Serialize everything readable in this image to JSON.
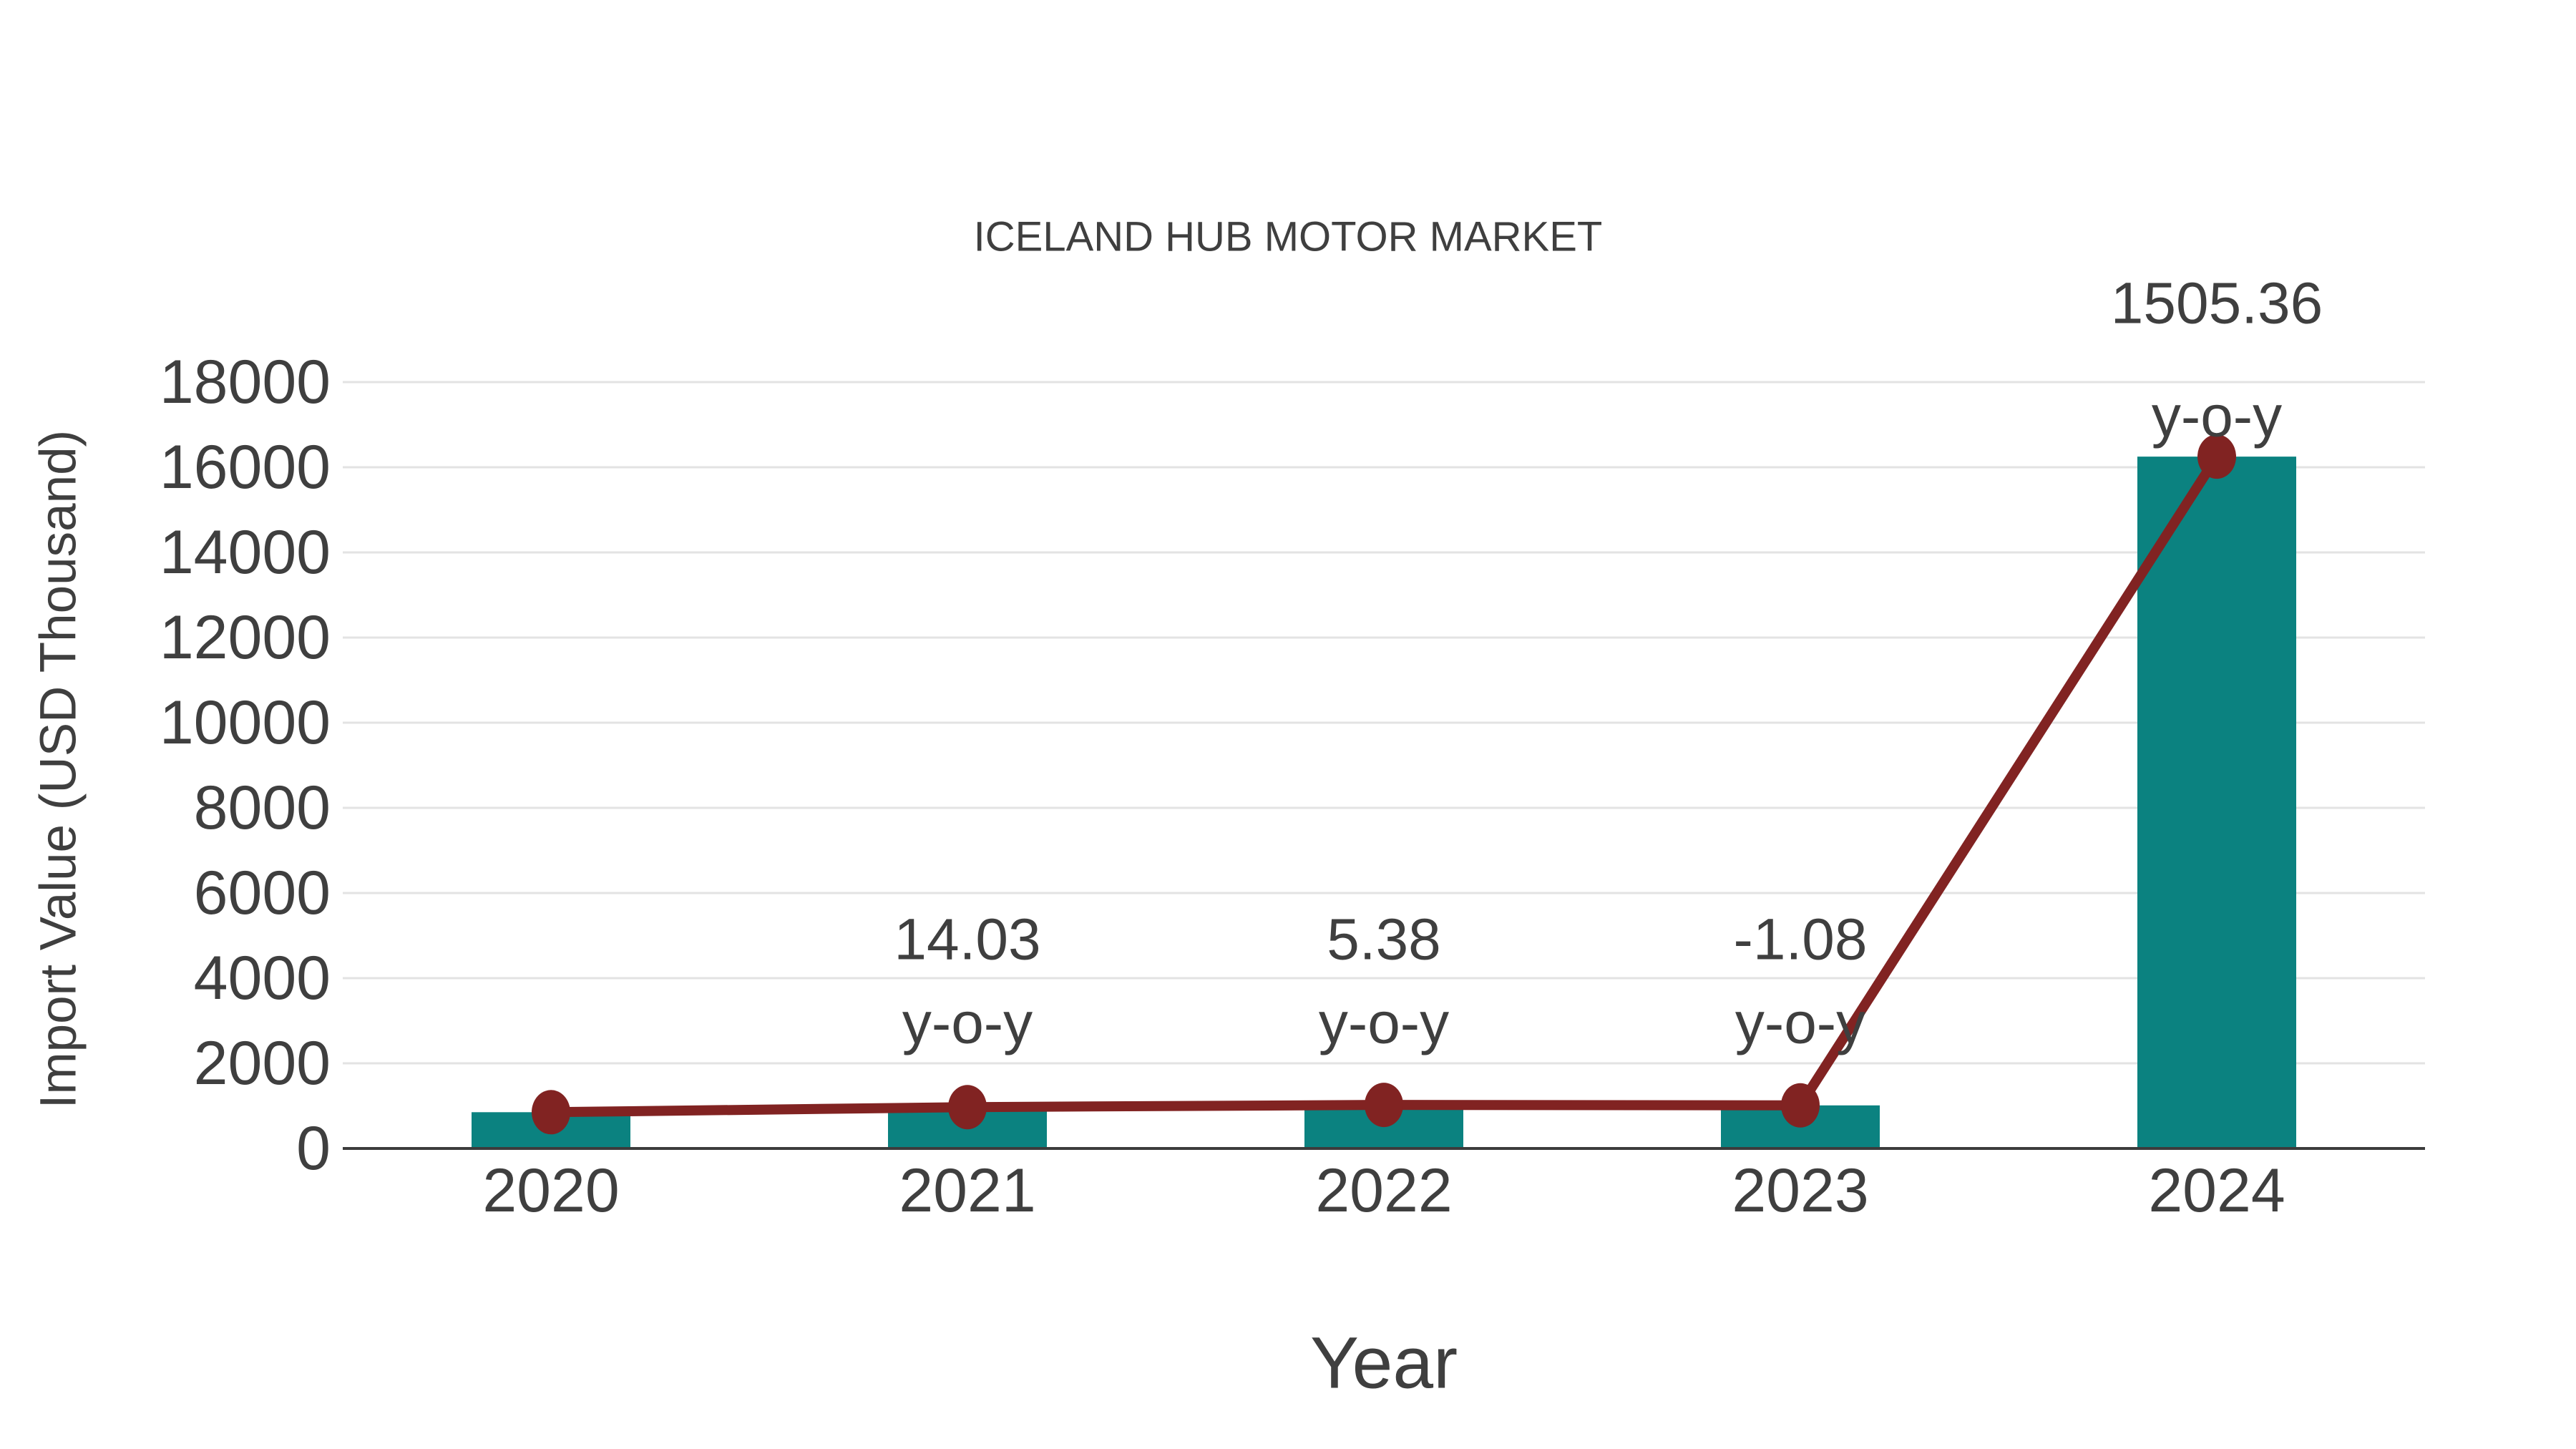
{
  "chart_data": {
    "type": "bar",
    "title": "ICELAND HUB MOTOR MARKET",
    "xlabel": "Year",
    "ylabel": "Import Value (USD Thousand)",
    "categories": [
      "2020",
      "2021",
      "2022",
      "2023",
      "2024"
    ],
    "series": [
      {
        "name": "import-value-bars",
        "type": "bar",
        "values": [
          852,
          971,
          1023,
          1012,
          16250
        ]
      },
      {
        "name": "import-value-line",
        "type": "line",
        "values": [
          852,
          971,
          1023,
          1012,
          16250
        ]
      }
    ],
    "annotations": [
      {
        "category": "2021",
        "value_label": "14.03",
        "suffix_label": "y-o-y"
      },
      {
        "category": "2022",
        "value_label": "5.38",
        "suffix_label": "y-o-y"
      },
      {
        "category": "2023",
        "value_label": "-1.08",
        "suffix_label": "y-o-y"
      },
      {
        "category": "2024",
        "value_label": "1505.36",
        "suffix_label": "y-o-y"
      }
    ],
    "ylim": [
      0,
      18000
    ],
    "ytick_step": 2000,
    "grid": "horizontal",
    "legend_position": "none",
    "colors": {
      "bar": "#0b8280",
      "line": "#812322",
      "marker": "#812322",
      "text": "#3f3f3f",
      "grid": "#e3e3e3",
      "axis": "#3c3c3c",
      "background": "#ffffff"
    }
  }
}
